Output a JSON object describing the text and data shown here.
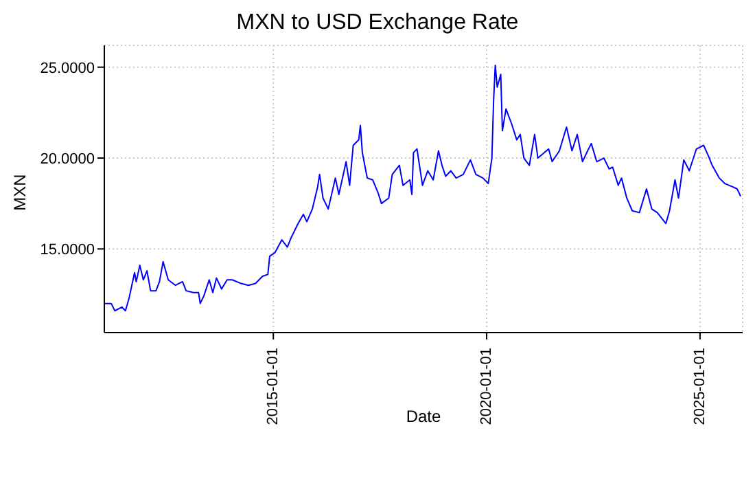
{
  "chart_data": {
    "type": "line",
    "title": "MXN to USD Exchange Rate",
    "xlabel": "Date",
    "ylabel": "MXN",
    "xlim": [
      "2011-01-15",
      "2026-01-01"
    ],
    "xticks": [
      "2015-01-01",
      "2020-01-01",
      "2025-01-01"
    ],
    "ylim": [
      10.4,
      26.2
    ],
    "yticks": [
      {
        "value": 15,
        "label": "15.0000"
      },
      {
        "value": 20,
        "label": "20.0000"
      },
      {
        "value": 25,
        "label": "25.0000"
      }
    ],
    "grid": true,
    "legend": false,
    "marker": "none",
    "line_style": "solid",
    "x": [
      "2011-01-15",
      "2011-03-15",
      "2011-04-15",
      "2011-06-15",
      "2011-07-15",
      "2011-08-15",
      "2011-10-01",
      "2011-10-15",
      "2011-11-15",
      "2011-12-15",
      "2012-01-15",
      "2012-02-15",
      "2012-04-01",
      "2012-05-01",
      "2012-06-01",
      "2012-07-15",
      "2012-09-15",
      "2012-11-15",
      "2012-12-15",
      "2013-02-15",
      "2013-04-01",
      "2013-04-15",
      "2013-05-15",
      "2013-07-01",
      "2013-08-01",
      "2013-09-01",
      "2013-10-15",
      "2013-12-01",
      "2014-01-15",
      "2014-04-01",
      "2014-06-01",
      "2014-08-01",
      "2014-10-01",
      "2014-11-15",
      "2014-12-01",
      "2015-01-15",
      "2015-03-15",
      "2015-05-01",
      "2015-06-01",
      "2015-08-01",
      "2015-09-15",
      "2015-10-15",
      "2015-12-01",
      "2016-01-15",
      "2016-02-01",
      "2016-03-01",
      "2016-04-15",
      "2016-06-15",
      "2016-07-15",
      "2016-09-15",
      "2016-10-15",
      "2016-11-15",
      "2017-01-01",
      "2017-01-15",
      "2017-02-01",
      "2017-03-15",
      "2017-05-01",
      "2017-06-15",
      "2017-07-15",
      "2017-09-15",
      "2017-10-15",
      "2017-12-15",
      "2018-01-15",
      "2018-03-15",
      "2018-04-01",
      "2018-04-15",
      "2018-05-15",
      "2018-07-01",
      "2018-08-15",
      "2018-10-01",
      "2018-11-15",
      "2018-12-15",
      "2019-01-15",
      "2019-03-01",
      "2019-04-15",
      "2019-06-15",
      "2019-08-15",
      "2019-10-01",
      "2019-12-01",
      "2020-01-15",
      "2020-02-15",
      "2020-03-01",
      "2020-03-15",
      "2020-04-01",
      "2020-05-01",
      "2020-05-15",
      "2020-06-15",
      "2020-08-01",
      "2020-09-15",
      "2020-10-15",
      "2020-11-15",
      "2021-01-01",
      "2021-02-15",
      "2021-03-15",
      "2021-06-15",
      "2021-07-15",
      "2021-09-15",
      "2021-11-15",
      "2022-01-01",
      "2022-02-15",
      "2022-04-01",
      "2022-05-15",
      "2022-06-15",
      "2022-08-01",
      "2022-10-01",
      "2022-11-15",
      "2022-12-15",
      "2023-02-01",
      "2023-03-01",
      "2023-04-15",
      "2023-06-01",
      "2023-08-01",
      "2023-10-01",
      "2023-11-15",
      "2024-01-01",
      "2024-03-15",
      "2024-04-15",
      "2024-06-01",
      "2024-07-01",
      "2024-08-15",
      "2024-10-01",
      "2024-12-01",
      "2025-02-01",
      "2025-03-15",
      "2025-04-15",
      "2025-06-15",
      "2025-08-01",
      "2025-10-15",
      "2025-11-15",
      "2025-12-15"
    ],
    "series": [
      {
        "color": "#0000ff",
        "values": [
          12.0,
          12.0,
          11.6,
          11.8,
          11.6,
          12.3,
          13.7,
          13.2,
          14.1,
          13.3,
          13.8,
          12.7,
          12.7,
          13.2,
          14.3,
          13.3,
          13.0,
          13.2,
          12.7,
          12.6,
          12.6,
          12.0,
          12.4,
          13.3,
          12.6,
          13.4,
          12.8,
          13.3,
          13.3,
          13.1,
          13.0,
          13.1,
          13.5,
          13.6,
          14.6,
          14.8,
          15.5,
          15.1,
          15.6,
          16.4,
          16.9,
          16.5,
          17.2,
          18.4,
          19.1,
          17.8,
          17.2,
          18.9,
          18.0,
          19.8,
          18.5,
          20.7,
          21.0,
          21.8,
          20.3,
          18.9,
          18.8,
          18.1,
          17.5,
          17.8,
          19.1,
          19.6,
          18.5,
          18.8,
          18.0,
          20.3,
          20.5,
          18.5,
          19.3,
          18.8,
          20.4,
          19.6,
          19.0,
          19.3,
          18.9,
          19.1,
          19.9,
          19.1,
          18.9,
          18.6,
          20.0,
          23.2,
          25.1,
          23.9,
          24.6,
          21.5,
          22.7,
          21.9,
          21.0,
          21.3,
          20.0,
          19.6,
          21.3,
          20.0,
          20.5,
          19.8,
          20.4,
          21.7,
          20.4,
          21.3,
          19.8,
          20.4,
          20.8,
          19.8,
          20.0,
          19.4,
          19.5,
          18.5,
          18.9,
          17.8,
          17.1,
          17.0,
          18.3,
          17.2,
          17.0,
          16.4,
          17.1,
          18.8,
          17.8,
          19.9,
          19.3,
          20.5,
          20.7,
          20.1,
          19.6,
          18.9,
          18.6,
          18.4,
          18.3,
          17.9
        ]
      }
    ]
  }
}
